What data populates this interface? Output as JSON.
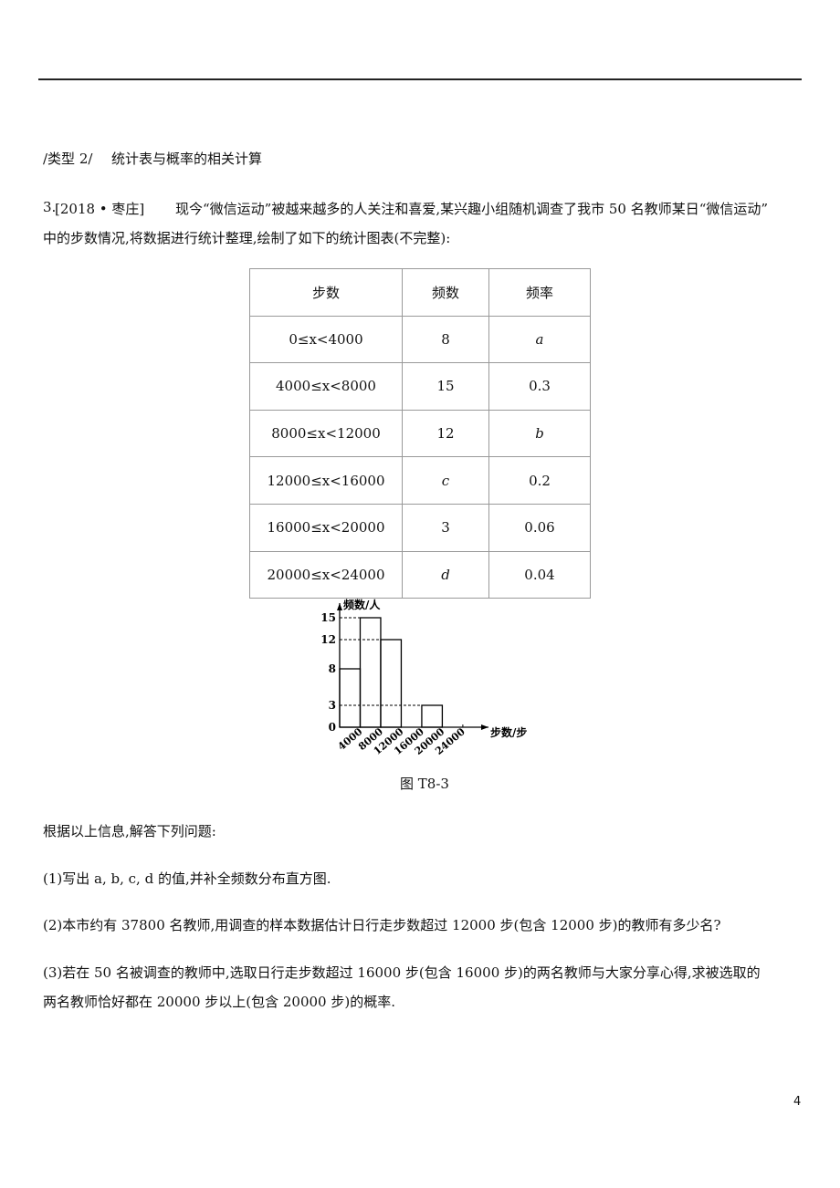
{
  "header": {
    "tag": "/类型 2/",
    "title": "统计表与概率的相关计算"
  },
  "problem": {
    "number": "3.",
    "source": "[2018 • 枣庄]",
    "intro_line1": "现今“微信运动”被越来越多的人关注和喜爱,某兴趣小组随机调查了我市 50 名教师某日“微信运动”",
    "intro_line2": "中的步数情况,将数据进行统计整理,绘制了如下的统计图表(不完整):"
  },
  "table": {
    "header": [
      "步数",
      "频数",
      "频率"
    ],
    "rows": [
      [
        "0≤x<4000",
        "8",
        "a"
      ],
      [
        "4000≤x<8000",
        "15",
        "0.3"
      ],
      [
        "8000≤x<12000",
        "12",
        "b"
      ],
      [
        "12000≤x<16000",
        "c",
        "0.2"
      ],
      [
        "16000≤x<20000",
        "3",
        "0.06"
      ],
      [
        "20000≤x<24000",
        "d",
        "0.04"
      ]
    ]
  },
  "chart_data": {
    "type": "histogram",
    "y_label": "频数/人",
    "x_label": "步数/步",
    "bins": [
      0,
      4000,
      8000,
      12000,
      16000,
      20000,
      24000
    ],
    "values": [
      8,
      15,
      12,
      null,
      3,
      null
    ],
    "xlim": [
      0,
      29000
    ],
    "xticks": [
      4000,
      8000,
      12000,
      16000,
      20000,
      24000
    ],
    "ylim": [
      0,
      17
    ],
    "yticks": [
      0,
      3,
      8,
      12,
      15
    ],
    "color": "#000000"
  },
  "caption": "图 T8-3",
  "prompt": "根据以上信息,解答下列问题:",
  "questions": [
    "(1)写出 a, b, c, d 的值,并补全频数分布直方图.",
    "(2)本市约有 37800 名教师,用调查的样本数据估计日行走步数超过 12000 步(包含 12000 步)的教师有多少名?",
    "(3)若在 50 名被调查的教师中,选取日行走步数超过 16000 步(包含 16000 步)的两名教师与大家分享心得,求被选取的",
    "两名教师恰好都在 20000 步以上(包含 20000 步)的概率."
  ],
  "page_number": "4"
}
